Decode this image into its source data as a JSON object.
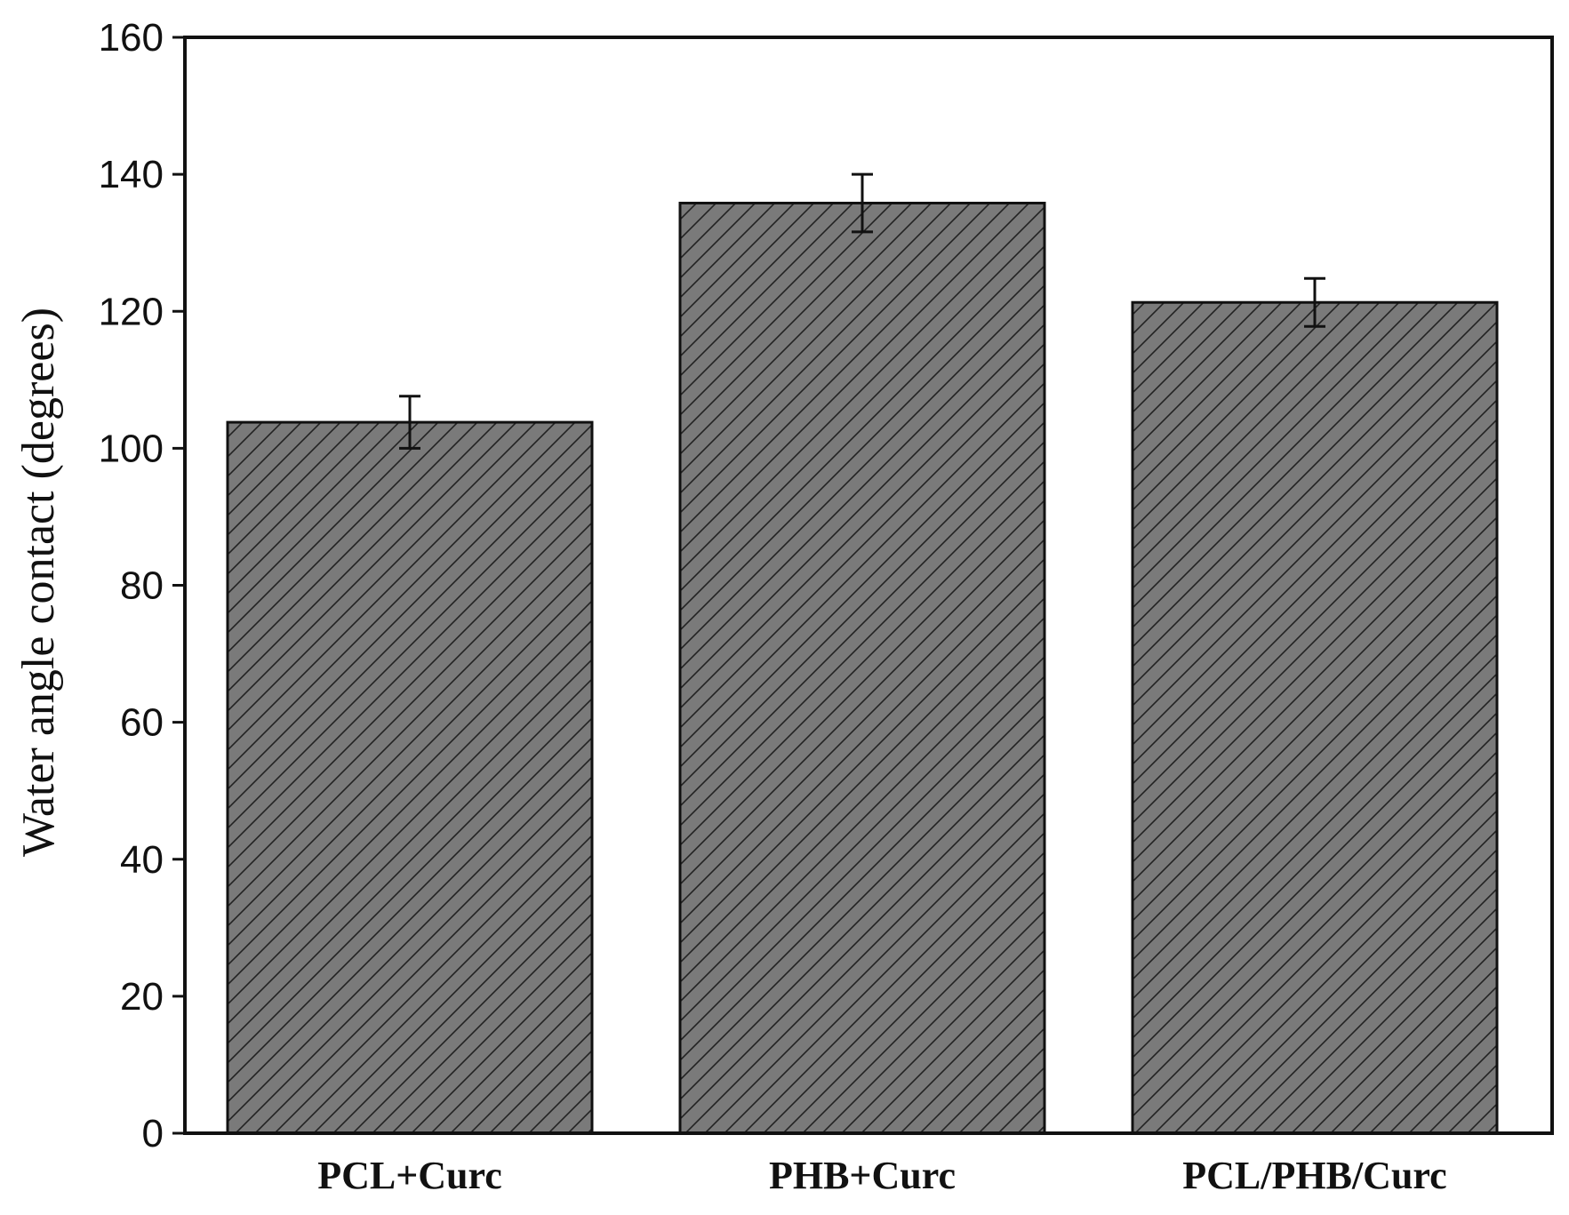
{
  "chart_data": {
    "type": "bar",
    "title": "",
    "xlabel": "",
    "ylabel": "Water angle contact (degrees)",
    "ylim": [
      0,
      160
    ],
    "yticks": [
      0,
      20,
      40,
      60,
      80,
      100,
      120,
      140,
      160
    ],
    "categories": [
      "PCL+Curc",
      "PHB+Curc",
      "PCL/PHB/Curc"
    ],
    "values": [
      103.8,
      135.8,
      121.3
    ],
    "errors": [
      3.8,
      4.2,
      3.5
    ],
    "bar_color": "#7a7a7a",
    "hatch_color": "#222222",
    "pattern": "diagonal-hatch",
    "grid": false,
    "legend": "none"
  }
}
